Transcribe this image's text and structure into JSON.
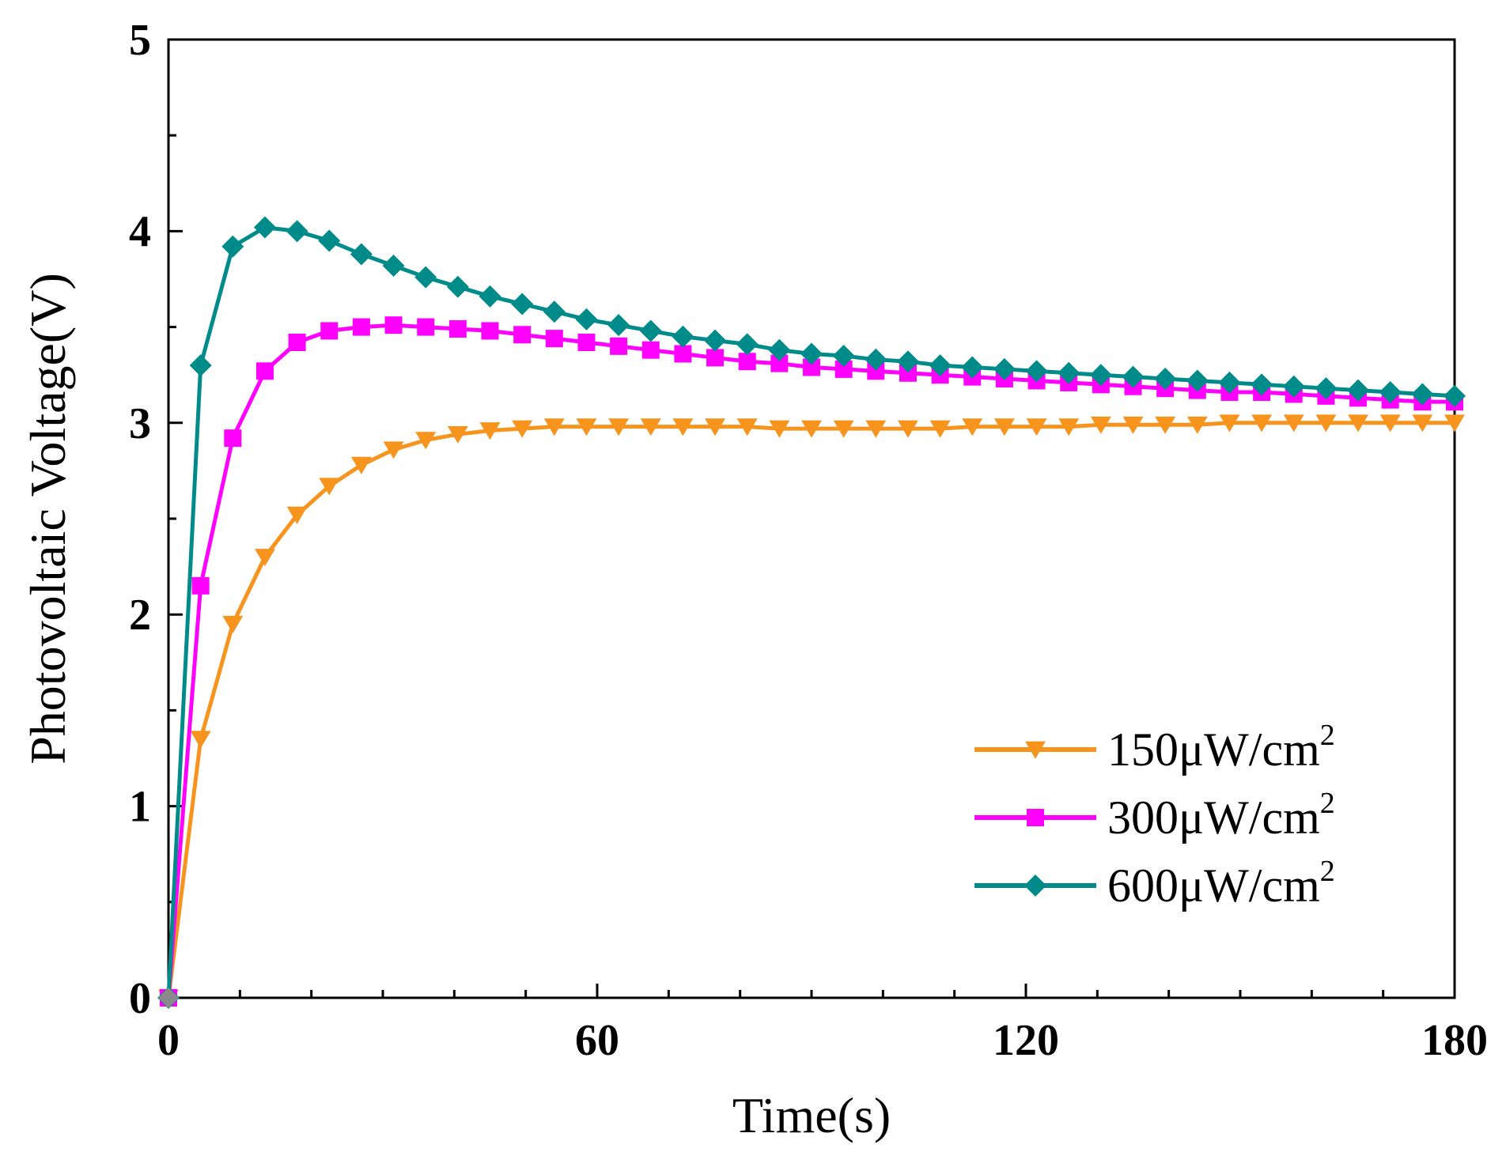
{
  "chart_data": {
    "type": "line",
    "title": "",
    "xlabel": "Time(s)",
    "ylabel": "Photovoltaic Voltage(V)",
    "xlim": [
      0,
      180
    ],
    "ylim": [
      0,
      5
    ],
    "xticks": [
      0,
      60,
      120,
      180
    ],
    "xtick_labels": [
      "0",
      "60",
      "120",
      "180"
    ],
    "yticks": [
      0,
      1,
      2,
      3,
      4,
      5
    ],
    "ytick_labels": [
      "0",
      "1",
      "2",
      "3",
      "4",
      "5"
    ],
    "grid": false,
    "legend_position": "bottom-right",
    "x": [
      0,
      4.5,
      9,
      13.5,
      18,
      22.5,
      27,
      31.5,
      36,
      40.5,
      45,
      49.5,
      54,
      58.5,
      63,
      67.5,
      72,
      76.5,
      81,
      85.5,
      90,
      94.5,
      99,
      103.5,
      108,
      112.5,
      117,
      121.5,
      126,
      130.5,
      135,
      139.5,
      144,
      148.5,
      153,
      157.5,
      162,
      166.5,
      171,
      175.5,
      180
    ],
    "series": [
      {
        "name": "150μW/cm",
        "superscript": "2",
        "color": "#F7941D",
        "marker": "triangle-down",
        "values": [
          0,
          1.35,
          1.95,
          2.3,
          2.52,
          2.67,
          2.78,
          2.86,
          2.91,
          2.94,
          2.96,
          2.97,
          2.98,
          2.98,
          2.98,
          2.98,
          2.98,
          2.98,
          2.98,
          2.97,
          2.97,
          2.97,
          2.97,
          2.97,
          2.97,
          2.98,
          2.98,
          2.98,
          2.98,
          2.99,
          2.99,
          2.99,
          2.99,
          3.0,
          3.0,
          3.0,
          3.0,
          3.0,
          3.0,
          3.0,
          3.0
        ]
      },
      {
        "name": "300μW/cm",
        "superscript": "2",
        "color": "#FF00FF",
        "marker": "square",
        "values": [
          0,
          2.15,
          2.92,
          3.27,
          3.42,
          3.48,
          3.5,
          3.51,
          3.5,
          3.49,
          3.48,
          3.46,
          3.44,
          3.42,
          3.4,
          3.38,
          3.36,
          3.34,
          3.32,
          3.31,
          3.29,
          3.28,
          3.27,
          3.26,
          3.25,
          3.24,
          3.23,
          3.22,
          3.21,
          3.2,
          3.19,
          3.18,
          3.17,
          3.16,
          3.16,
          3.15,
          3.14,
          3.13,
          3.12,
          3.11,
          3.11
        ]
      },
      {
        "name": "600μW/cm",
        "superscript": "2",
        "color": "#008B8B",
        "marker": "diamond",
        "values": [
          0,
          3.3,
          3.92,
          4.02,
          4.0,
          3.95,
          3.88,
          3.82,
          3.76,
          3.71,
          3.66,
          3.62,
          3.58,
          3.54,
          3.51,
          3.48,
          3.45,
          3.43,
          3.41,
          3.38,
          3.36,
          3.35,
          3.33,
          3.32,
          3.3,
          3.29,
          3.28,
          3.27,
          3.26,
          3.25,
          3.24,
          3.23,
          3.22,
          3.21,
          3.2,
          3.19,
          3.18,
          3.17,
          3.16,
          3.15,
          3.14
        ]
      }
    ]
  }
}
